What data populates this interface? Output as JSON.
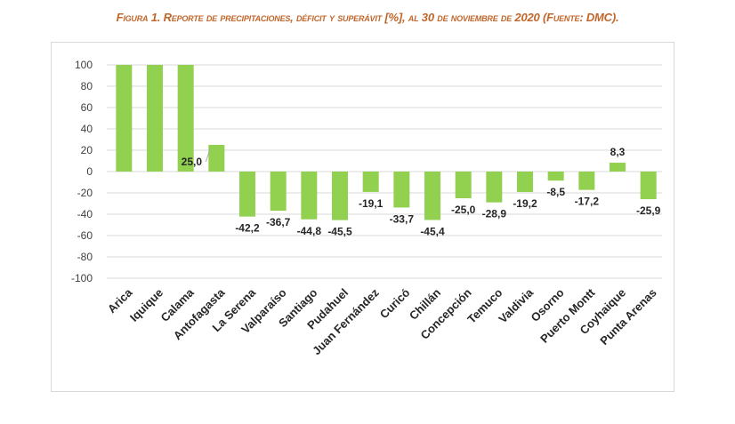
{
  "figure": {
    "title": "Figura 1. Reporte de precipitaciones, déficit y superávit [%], al 30 de noviembre de 2020 (Fuente: DMC)."
  },
  "colors": {
    "bar": "#92D050",
    "title": "#C0662A",
    "grid": "#d9d9d9",
    "leader": "#a6a6a6"
  },
  "chart_data": {
    "type": "bar",
    "title": "Reporte de precipitaciones, déficit y superávit [%], al 30 de noviembre de 2020 (Fuente: DMC)",
    "xlabel": "",
    "ylabel": "",
    "ylim": [
      -100,
      100
    ],
    "yticks": [
      100,
      80,
      60,
      40,
      20,
      0,
      -20,
      -40,
      -60,
      -80,
      -100
    ],
    "grid": true,
    "legend": "none",
    "categories": [
      "Arica",
      "Iquique",
      "Calama",
      "Antofagasta",
      "La Serena",
      "Valparaíso",
      "Santiago",
      "Pudahuel",
      "Juan Fernández",
      "Curicó",
      "Chillán",
      "Concepción",
      "Temuco",
      "Valdivia",
      "Osorno",
      "Puerto Montt",
      "Coyhaique",
      "Punta Arenas"
    ],
    "values": [
      100,
      100,
      100,
      25.0,
      -42.2,
      -36.7,
      -44.8,
      -45.5,
      -19.1,
      -33.7,
      -45.4,
      -25.0,
      -28.9,
      -19.2,
      -8.5,
      -17.2,
      8.3,
      -25.9
    ],
    "data_labels": [
      null,
      null,
      null,
      "25,0",
      "-42,2",
      "-36,7",
      "-44,8",
      "-45,5",
      "-19,1",
      "-33,7",
      "-45,4",
      "-25,0",
      "-28,9",
      "-19,2",
      "-8,5",
      "-17,2",
      "8,3",
      "-25,9"
    ]
  }
}
